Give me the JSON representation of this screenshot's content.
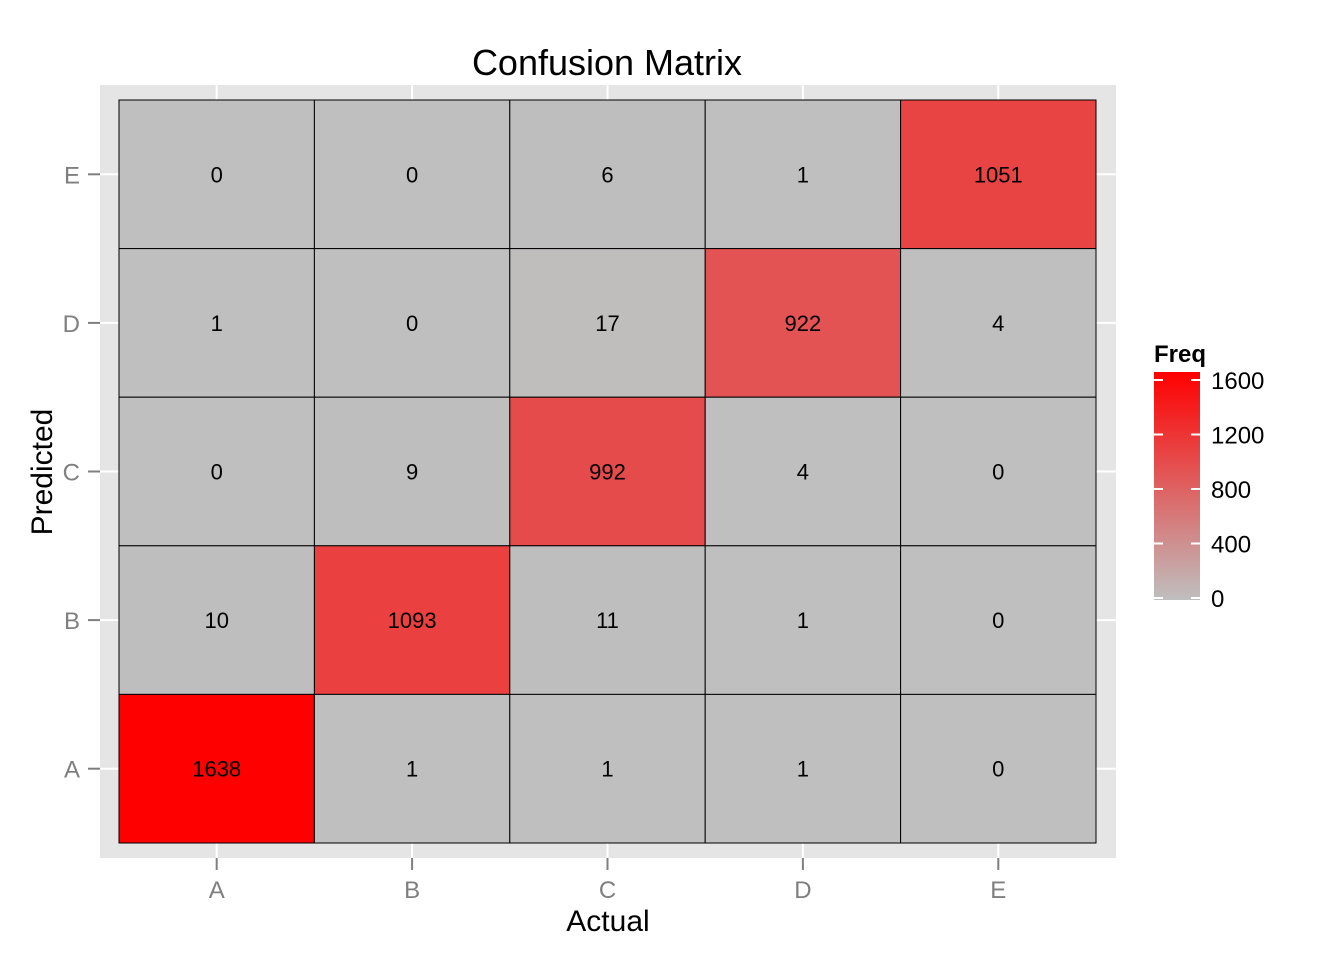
{
  "chart_data": {
    "type": "heatmap",
    "title": "Confusion Matrix",
    "xlabel": "Actual",
    "ylabel": "Predicted",
    "x_categories": [
      "A",
      "B",
      "C",
      "D",
      "E"
    ],
    "y_categories": [
      "A",
      "B",
      "C",
      "D",
      "E"
    ],
    "rows": [
      {
        "predicted": "E",
        "values": [
          0,
          0,
          6,
          1,
          1051
        ]
      },
      {
        "predicted": "D",
        "values": [
          1,
          0,
          17,
          922,
          4
        ]
      },
      {
        "predicted": "C",
        "values": [
          0,
          9,
          992,
          4,
          0
        ]
      },
      {
        "predicted": "B",
        "values": [
          10,
          1093,
          11,
          1,
          0
        ]
      },
      {
        "predicted": "A",
        "values": [
          1638,
          1,
          1,
          1,
          0
        ]
      }
    ],
    "legend": {
      "title": "Freq",
      "ticks": [
        0,
        400,
        800,
        1200,
        1600
      ],
      "position": "right"
    },
    "color_scale": {
      "low": "#bfbfbf",
      "high": "#ff0000",
      "domain": [
        0,
        1638
      ]
    },
    "panel_background": "#e5e5e5",
    "grid": true
  }
}
